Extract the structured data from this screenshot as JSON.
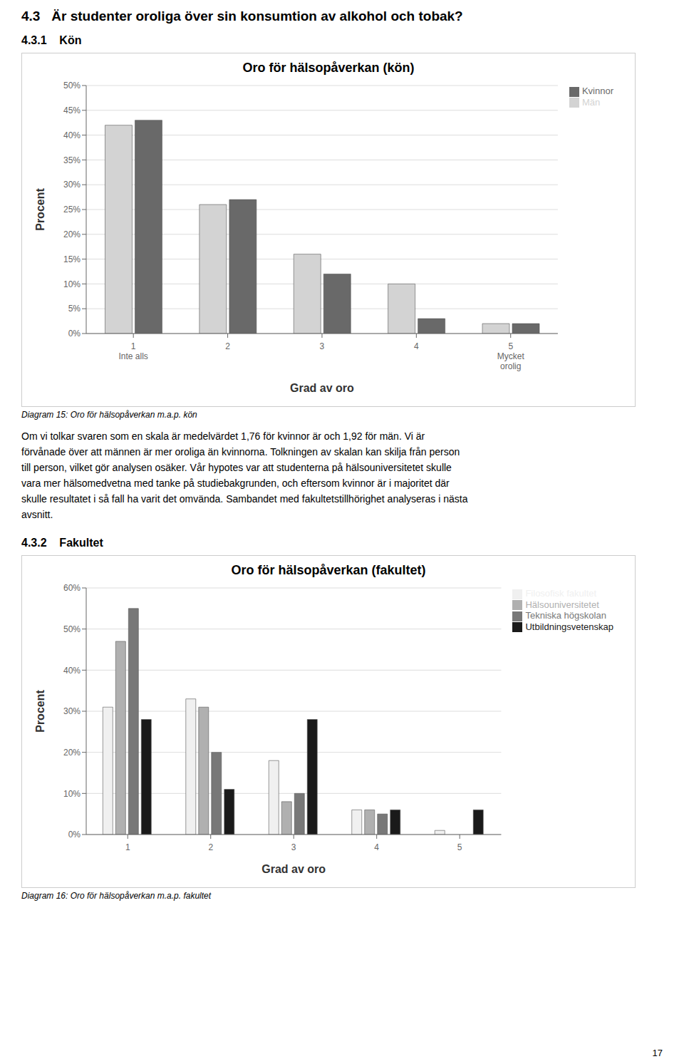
{
  "title": "4.3   Är studenter oroliga över sin konsumtion av alkohol och tobak?",
  "annotations": [
    "17"
  ],
  "chart_data": [
    {
      "type": "bar",
      "subtitle": "4.3.1    Kön",
      "title": "Oro för hälsopåverkan (kön)",
      "x_label": "Grad av oro",
      "y_label": "Procent",
      "categories": [
        "1\nInte alls",
        "2",
        "3",
        "4",
        "5\nMycket\norolig"
      ],
      "series": [
        {
          "name": "Män",
          "color": "#d3d3d3",
          "values": [
            0.42,
            0.26,
            0.16,
            0.1,
            0.02
          ]
        },
        {
          "name": "Kvinnor",
          "color": "#696969",
          "values": [
            0.43,
            0.27,
            0.12,
            0.03,
            0.02
          ]
        }
      ],
      "ylim": [
        0,
        0.5
      ],
      "yticks": [
        {
          "value": 0.0,
          "label": "0%"
        },
        {
          "value": 0.05,
          "label": "5%"
        },
        {
          "value": 0.1,
          "label": "10%"
        },
        {
          "value": 0.15,
          "label": "15%"
        },
        {
          "value": 0.2,
          "label": "20%"
        },
        {
          "value": 0.25,
          "label": "25%"
        },
        {
          "value": 0.3,
          "label": "30%"
        },
        {
          "value": 0.35,
          "label": "35%"
        },
        {
          "value": 0.4,
          "label": "40%"
        },
        {
          "value": 0.45,
          "label": "45%"
        },
        {
          "value": 0.5,
          "label": "50%"
        }
      ],
      "grid": true,
      "legend": "upper right",
      "annotations": [
        "Diagram 15: Oro för hälsopåverkan m.a.p. kön",
        "Om vi tolkar svaren som en skala är medelvärdet 1,76 för kvinnor är och 1,92 för män. Vi är",
        "förvånade över att männen är mer oroliga än kvinnorna. Tolkningen av skalan kan skilja från person",
        "till person, vilket gör analysen osäker. Vår hypotes var att studenterna på hälsouniversitetet skulle",
        "vara mer hälsomedvetna med tanke på studiebakgrunden, och eftersom kvinnor är i majoritet där",
        "skulle resultatet i så fall ha varit det omvända. Sambandet med fakultetstillhörighet analyseras i nästa",
        "avsnitt."
      ]
    },
    {
      "type": "bar",
      "subtitle": "4.3.2    Fakultet",
      "title": "Oro för hälsopåverkan (fakultet)",
      "x_label": "Grad av oro",
      "y_label": "Procent",
      "categories": [
        "1",
        "2",
        "3",
        "4",
        "5"
      ],
      "series": [
        {
          "name": "Filosofisk fakultet",
          "color": "#f0f0f0",
          "values": [
            0.31,
            0.33,
            0.18,
            0.06,
            0.01
          ]
        },
        {
          "name": "Hälsouniversitetet",
          "color": "#b0b0b0",
          "values": [
            0.47,
            0.31,
            0.08,
            0.06,
            0.0
          ]
        },
        {
          "name": "Tekniska högskolan",
          "color": "#787878",
          "values": [
            0.55,
            0.2,
            0.1,
            0.05,
            0.0
          ]
        },
        {
          "name": "Utbildningsvetenskap",
          "color": "#1a1a1a",
          "values": [
            0.28,
            0.11,
            0.28,
            0.06,
            0.06
          ]
        }
      ],
      "ylim": [
        0,
        0.6
      ],
      "yticks": [
        {
          "value": 0.0,
          "label": "0%"
        },
        {
          "value": 0.1,
          "label": "10%"
        },
        {
          "value": 0.2,
          "label": "20%"
        },
        {
          "value": 0.3,
          "label": "30%"
        },
        {
          "value": 0.4,
          "label": "40%"
        },
        {
          "value": 0.5,
          "label": "50%"
        },
        {
          "value": 0.6,
          "label": "60%"
        }
      ],
      "grid": true,
      "legend": "upper right",
      "annotations": [
        "Diagram 16: Oro för hälsopåverkan m.a.p. fakultet"
      ]
    }
  ]
}
